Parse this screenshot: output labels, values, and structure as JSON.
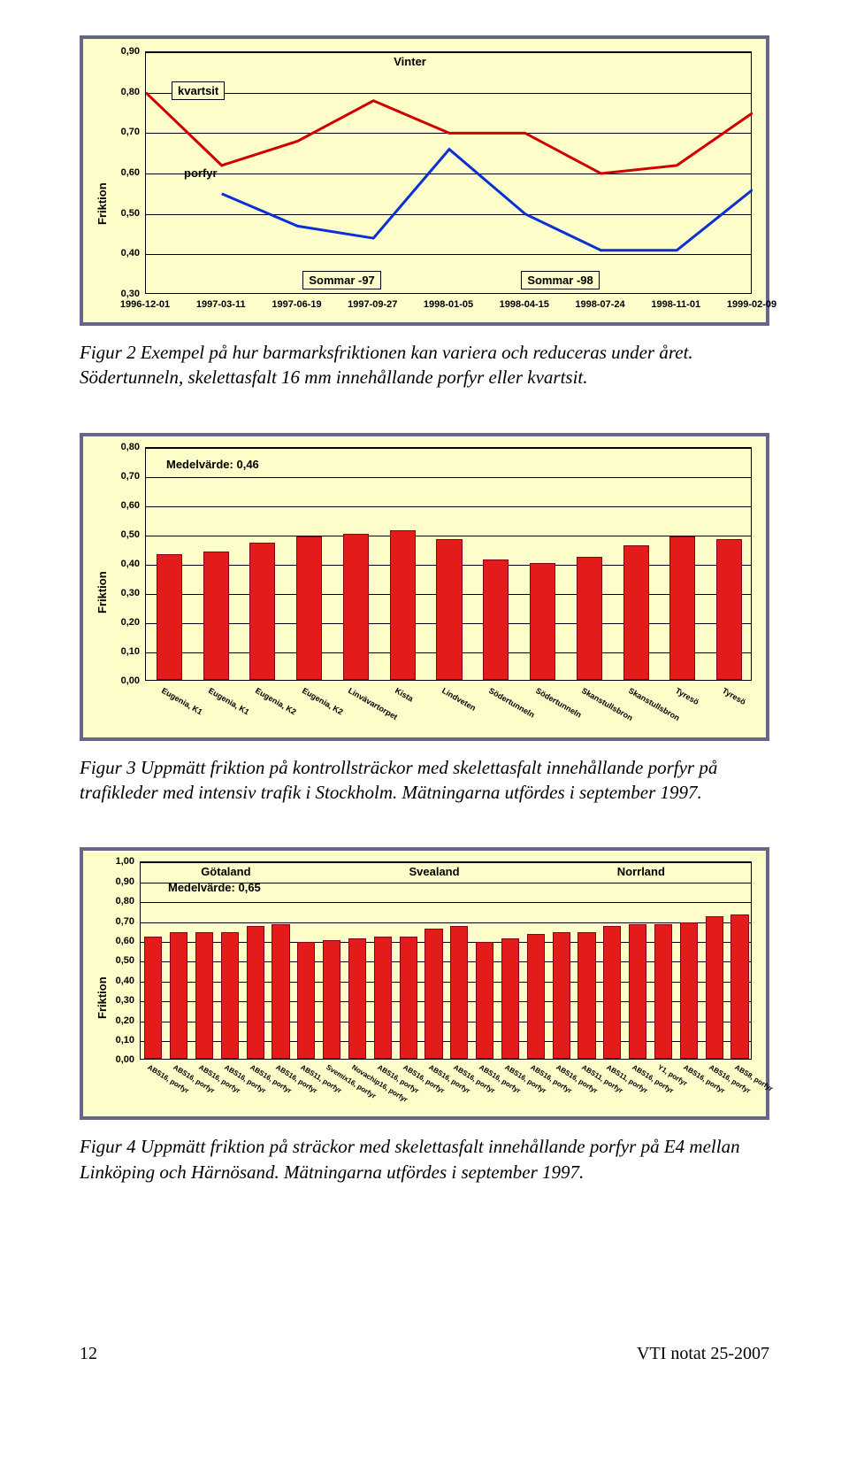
{
  "chart1": {
    "type": "line",
    "x_categories": [
      "1996-12-01",
      "1997-03-11",
      "1997-06-19",
      "1997-09-27",
      "1998-01-05",
      "1998-04-15",
      "1998-07-24",
      "1998-11-01",
      "1999-02-09"
    ],
    "y_axis_label": "Friktion",
    "ylim": [
      0.3,
      0.9
    ],
    "y_ticks": [
      "0,30",
      "0,40",
      "0,50",
      "0,60",
      "0,70",
      "0,80",
      "0,90"
    ],
    "grid_color": "#000000",
    "background": "#fdfdc9",
    "series": [
      {
        "name": "kvartsit",
        "color": "#d10000",
        "width": 3,
        "points": [
          {
            "i": 1,
            "v": 0.8
          },
          {
            "i": 2,
            "v": 0.62
          },
          {
            "i": 3,
            "v": 0.68
          },
          {
            "i": 4,
            "v": 0.78
          },
          {
            "i": 5,
            "v": 0.7
          },
          {
            "i": 6,
            "v": 0.7
          },
          {
            "i": 7,
            "v": 0.6
          },
          {
            "i": 8,
            "v": 0.62
          },
          {
            "i": 9,
            "v": 0.75
          }
        ]
      },
      {
        "name": "porfyr",
        "color": "#0a2fd6",
        "width": 3,
        "points": [
          {
            "i": 2,
            "v": 0.55
          },
          {
            "i": 3,
            "v": 0.47
          },
          {
            "i": 4,
            "v": 0.44
          },
          {
            "i": 5,
            "v": 0.66
          },
          {
            "i": 6,
            "v": 0.5
          },
          {
            "i": 7,
            "v": 0.41
          },
          {
            "i": 8,
            "v": 0.41
          },
          {
            "i": 9,
            "v": 0.56
          }
        ]
      }
    ],
    "annotations": {
      "kvartsit": "kvartsit",
      "porfyr": "porfyr",
      "vinter": "Vinter",
      "sommar97": "Sommar -97",
      "sommar98": "Sommar -98"
    }
  },
  "caption1": "Figur 2  Exempel på hur barmarksfriktionen kan variera och reduceras under året. Södertunneln, skelettasfalt 16 mm innehållande porfyr eller kvartsit.",
  "chart2": {
    "type": "bar",
    "y_axis_label": "Friktion",
    "medel_label": "Medelvärde: 0,46",
    "ylim": [
      0.0,
      0.8
    ],
    "y_ticks": [
      "0,00",
      "0,10",
      "0,20",
      "0,30",
      "0,40",
      "0,50",
      "0,60",
      "0,70",
      "0,80"
    ],
    "bar_color": "#e31b1b",
    "bar_border": "#8b0014",
    "background": "#fdfdc9",
    "categories": [
      "Eugenia, K1",
      "Eugenia, K1",
      "Eugenia, K2",
      "Eugenia, K2",
      "Linvävartorpet",
      "Kista",
      "Lindveten",
      "Södertunneln",
      "Södertunneln",
      "Skanstullsbron",
      "Skanstullsbron",
      "Tyresö",
      "Tyresö"
    ],
    "values": [
      0.43,
      0.44,
      0.47,
      0.49,
      0.5,
      0.51,
      0.48,
      0.41,
      0.4,
      0.42,
      0.46,
      0.49,
      0.48
    ]
  },
  "caption2": "Figur 3  Uppmätt friktion på kontrollsträckor med skelettasfalt innehållande porfyr på trafikleder med intensiv trafik i Stockholm. Mätningarna utfördes i september 1997.",
  "chart3": {
    "type": "bar",
    "y_axis_label": "Friktion",
    "medel_label": "Medelvärde: 0,65",
    "ylim": [
      0.0,
      1.0
    ],
    "y_ticks": [
      "0,00",
      "0,10",
      "0,20",
      "0,30",
      "0,40",
      "0,50",
      "0,60",
      "0,70",
      "0,80",
      "0,90",
      "1,00"
    ],
    "bar_color": "#e31b1b",
    "bar_border": "#8b0014",
    "background": "#fdfdc9",
    "regions": {
      "gotaland": "Götaland",
      "svealand": "Svealand",
      "norrland": "Norrland"
    },
    "categories": [
      "ABS16, porfyr",
      "ABS16, porfyr",
      "ABS16, porfyr",
      "ABS16, porfyr",
      "ABS16, porfyr",
      "ABS16, porfyr",
      "ABS11, porfyr",
      "Svemix16, porfyr",
      "Novachip16, porfyr",
      "ABS16, porfyr",
      "ABS16, porfyr",
      "ABS16, porfyr",
      "ABS16, porfyr",
      "ABS16, porfyr",
      "ABS16, porfyr",
      "ABS16, porfyr",
      "ABS16, porfyr",
      "ABS11, porfyr",
      "ABS11, porfyr",
      "ABS16, porfyr",
      "Y1, porfyr",
      "ABS16, porfyr",
      "ABS16, porfyr",
      "ABS8, porfyr"
    ],
    "values": [
      0.62,
      0.64,
      0.64,
      0.64,
      0.67,
      0.68,
      0.59,
      0.6,
      0.61,
      0.62,
      0.62,
      0.66,
      0.67,
      0.59,
      0.61,
      0.63,
      0.64,
      0.64,
      0.67,
      0.68,
      0.68,
      0.69,
      0.72,
      0.73
    ]
  },
  "caption3": "Figur 4  Uppmätt friktion på sträckor med skelettasfalt innehållande porfyr på E4 mellan Linköping och Härnösand. Mätningarna utfördes i september 1997.",
  "footer": {
    "page": "12",
    "doc": "VTI notat 25-2007"
  }
}
